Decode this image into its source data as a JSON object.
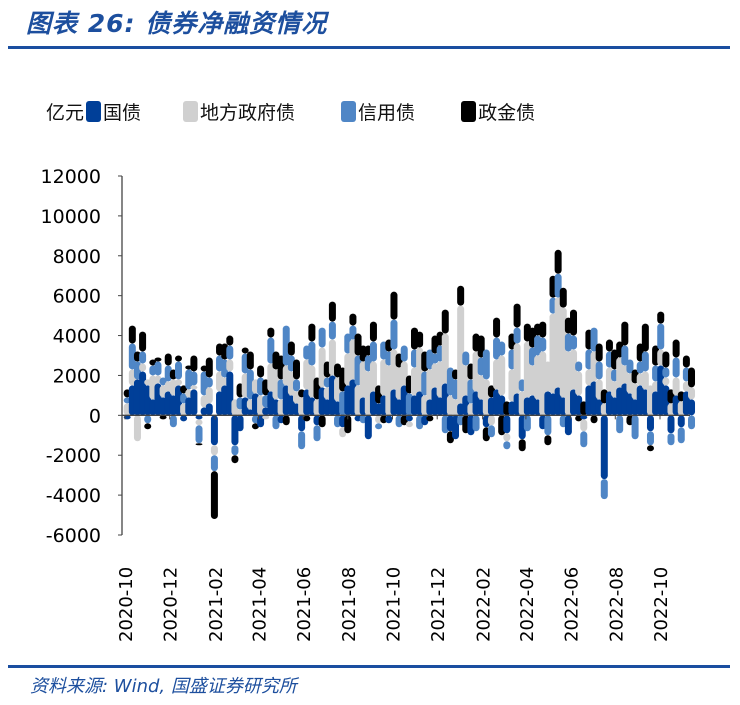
{
  "header": {
    "title": "图表 26:  债券净融资情况"
  },
  "footer": {
    "source": "资料来源:  Wind,  国盛证券研究所"
  },
  "chart_data": {
    "type": "bar",
    "stacked": true,
    "unit_label": "亿元",
    "legend_placement": "top",
    "ylim": [
      -6000,
      12000
    ],
    "yticks": [
      "12000",
      "10000",
      "8000",
      "6000",
      "4000",
      "2000",
      "0",
      "-2000",
      "-4000",
      "-6000"
    ],
    "xticks": [
      "2020-10",
      "2020-12",
      "2021-02",
      "2021-04",
      "2021-06",
      "2021-08",
      "2021-10",
      "2021-12",
      "2022-02",
      "2022-04",
      "2022-06",
      "2022-08",
      "2022-10"
    ],
    "x": [
      "2020-10-04",
      "2020-10-11",
      "2020-10-18",
      "2020-10-25",
      "2020-11-01",
      "2020-11-08",
      "2020-11-15",
      "2020-11-22",
      "2020-11-29",
      "2020-12-06",
      "2020-12-13",
      "2020-12-20",
      "2020-12-27",
      "2021-01-03",
      "2021-01-10",
      "2021-01-17",
      "2021-01-24",
      "2021-01-31",
      "2021-02-07",
      "2021-02-14",
      "2021-02-21",
      "2021-02-28",
      "2021-03-07",
      "2021-03-14",
      "2021-03-21",
      "2021-03-28",
      "2021-04-04",
      "2021-04-11",
      "2021-04-18",
      "2021-04-25",
      "2021-05-02",
      "2021-05-09",
      "2021-05-16",
      "2021-05-23",
      "2021-05-30",
      "2021-06-06",
      "2021-06-13",
      "2021-06-20",
      "2021-06-27",
      "2021-07-04",
      "2021-07-11",
      "2021-07-18",
      "2021-07-25",
      "2021-08-01",
      "2021-08-08",
      "2021-08-15",
      "2021-08-22",
      "2021-08-29",
      "2021-09-05",
      "2021-09-12",
      "2021-09-19",
      "2021-09-26",
      "2021-10-03",
      "2021-10-10",
      "2021-10-17",
      "2021-10-24",
      "2021-10-31",
      "2021-11-07",
      "2021-11-14",
      "2021-11-21",
      "2021-11-28",
      "2021-12-05",
      "2021-12-12",
      "2021-12-19",
      "2021-12-26",
      "2022-01-02",
      "2022-01-09",
      "2022-01-16",
      "2022-01-23",
      "2022-01-30",
      "2022-02-06",
      "2022-02-13",
      "2022-02-20",
      "2022-02-27",
      "2022-03-06",
      "2022-03-13",
      "2022-03-20",
      "2022-03-27",
      "2022-04-03",
      "2022-04-10",
      "2022-04-17",
      "2022-04-24",
      "2022-05-01",
      "2022-05-08",
      "2022-05-15",
      "2022-05-22",
      "2022-05-29",
      "2022-06-05",
      "2022-06-12",
      "2022-06-19",
      "2022-06-26",
      "2022-07-03",
      "2022-07-10",
      "2022-07-17",
      "2022-07-24",
      "2022-07-31",
      "2022-08-07",
      "2022-08-14",
      "2022-08-21",
      "2022-08-28",
      "2022-09-04",
      "2022-09-11",
      "2022-09-18",
      "2022-09-25",
      "2022-10-02",
      "2022-10-09",
      "2022-10-16",
      "2022-10-23",
      "2022-10-30",
      "2022-11-06",
      "2022-11-13"
    ],
    "series": [
      {
        "name": "国债",
        "color": "#003f98",
        "values": [
          -200,
          1500,
          1800,
          2200,
          1500,
          800,
          1600,
          900,
          1200,
          1000,
          1500,
          -300,
          900,
          1300,
          -200,
          400,
          600,
          -1500,
          1200,
          1500,
          2200,
          -1500,
          -800,
          900,
          300,
          1100,
          -600,
          400,
          1200,
          800,
          -400,
          1500,
          1000,
          600,
          -800,
          1300,
          900,
          -500,
          1400,
          800,
          2000,
          700,
          -600,
          1500,
          1800,
          -300,
          900,
          -1200,
          1200,
          600,
          1000,
          -400,
          1300,
          800,
          1500,
          -300,
          1000,
          1200,
          -500,
          800,
          1400,
          900,
          1600,
          -800,
          -1200,
          600,
          1000,
          -1000,
          1200,
          800,
          -600,
          900,
          1300,
          1000,
          -900,
          700,
          1100,
          -1200,
          900,
          1000,
          800,
          -700,
          1200,
          1100,
          1400,
          900,
          -1000,
          1300,
          1000,
          -200,
          1500,
          1700,
          800,
          -3200,
          1200,
          900,
          1400,
          1600,
          1100,
          800,
          1500,
          1300,
          -800,
          1200,
          2500,
          1500,
          -900,
          1000,
          -600,
          1200,
          800
        ]
      },
      {
        "name": "地方政府债",
        "color": "#d0d0d0",
        "values": [
          600,
          800,
          -1300,
          400,
          300,
          1200,
          400,
          600,
          500,
          800,
          300,
          600,
          400,
          200,
          -300,
          600,
          800,
          -500,
          1000,
          400,
          600,
          800,
          300,
          1200,
          500,
          700,
          1000,
          -200,
          1400,
          1500,
          800,
          1000,
          1200,
          600,
          900,
          1500,
          1600,
          800,
          2000,
          600,
          1800,
          1200,
          -500,
          1600,
          2000,
          1500,
          1800,
          2200,
          1500,
          -400,
          1800,
          2500,
          2000,
          1600,
          1200,
          -300,
          1400,
          2200,
          1000,
          1500,
          1200,
          1800,
          2500,
          1000,
          800,
          4900,
          1500,
          600,
          2000,
          1200,
          1800,
          -500,
          1500,
          2000,
          -400,
          1600,
          2500,
          1200,
          2800,
          1500,
          2200,
          3200,
          1500,
          4000,
          4500,
          4500,
          3200,
          2000,
          1200,
          -600,
          800,
          1500,
          1000,
          600,
          1200,
          800,
          1500,
          900,
          1000,
          800,
          600,
          900,
          1500,
          500,
          800,
          400,
          600,
          900,
          700,
          500,
          600
        ]
      },
      {
        "name": "信用债",
        "color": "#4f86c6",
        "values": [
          300,
          1300,
          900,
          600,
          -400,
          500,
          700,
          400,
          800,
          -600,
          900,
          500,
          1000,
          700,
          -900,
          1200,
          500,
          -800,
          800,
          900,
          700,
          -500,
          600,
          1000,
          1500,
          -400,
          900,
          600,
          1300,
          -700,
          1000,
          2000,
          800,
          600,
          -900,
          700,
          1200,
          -800,
          1000,
          500,
          900,
          -600,
          1200,
          1000,
          700,
          1500,
          -400,
          800,
          1000,
          -300,
          900,
          700,
          1500,
          -600,
          800,
          1100,
          900,
          -700,
          1200,
          1000,
          500,
          800,
          -900,
          1400,
          1000,
          -500,
          700,
          1200,
          -800,
          900,
          1500,
          -600,
          1100,
          700,
          -400,
          1000,
          800,
          600,
          -800,
          900,
          1000,
          700,
          -1000,
          800,
          1200,
          -600,
          900,
          700,
          500,
          -800,
          1000,
          1200,
          900,
          -1000,
          800,
          600,
          -900,
          1000,
          700,
          -1200,
          600,
          1000,
          -700,
          800,
          1300,
          500,
          -600,
          1000,
          -800,
          700,
          -700
        ]
      },
      {
        "name": "政金债",
        "color": "#000000",
        "values": [
          400,
          900,
          500,
          1000,
          -300,
          300,
          200,
          -200,
          600,
          500,
          300,
          400,
          200,
          800,
          -100,
          300,
          1000,
          -2400,
          600,
          800,
          500,
          -400,
          700,
          300,
          900,
          -300,
          600,
          800,
          500,
          900,
          1200,
          -500,
          700,
          1000,
          400,
          -300,
          900,
          1100,
          -600,
          800,
          1000,
          700,
          1200,
          -900,
          600,
          1100,
          800,
          500,
          1000,
          900,
          -400,
          600,
          1400,
          700,
          -500,
          900,
          1100,
          800,
          1000,
          -300,
          900,
          700,
          1200,
          -600,
          500,
          1000,
          -900,
          800,
          900,
          1100,
          -700,
          600,
          1000,
          -1000,
          700,
          800,
          1200,
          -600,
          900,
          1000,
          600,
          800,
          -500,
          1100,
          1200,
          1000,
          800,
          1300,
          -300,
          700,
          1000,
          -400,
          900,
          700,
          600,
          1000,
          800,
          1200,
          -500,
          700,
          900,
          1400,
          -300,
          1000,
          600,
          800,
          700,
          900,
          500,
          600,
          1000
        ]
      }
    ]
  }
}
